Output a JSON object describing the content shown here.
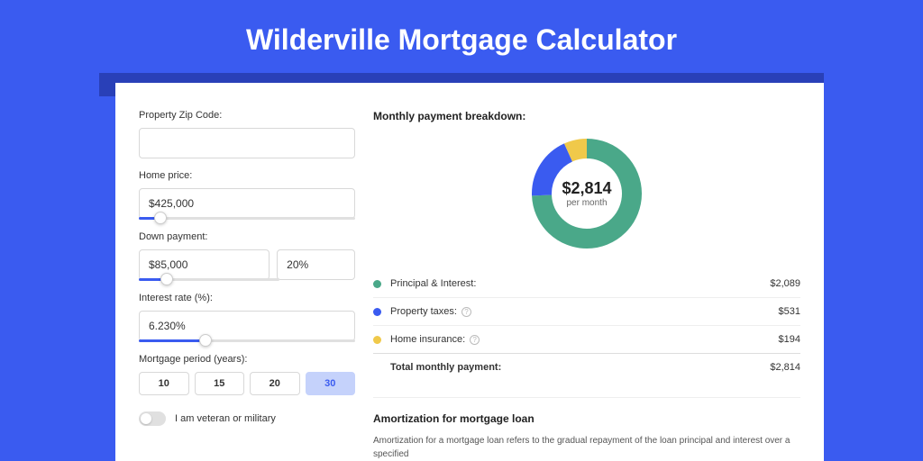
{
  "page": {
    "title": "Wilderville Mortgage Calculator",
    "background_color": "#3a5bf0",
    "band_color": "#2940b8",
    "card_bg": "#ffffff"
  },
  "form": {
    "zip": {
      "label": "Property Zip Code:",
      "value": ""
    },
    "home_price": {
      "label": "Home price:",
      "value": "$425,000",
      "slider_percent": 10
    },
    "down_payment": {
      "label": "Down payment:",
      "amount": "$85,000",
      "percent": "20%",
      "slider_percent": 20
    },
    "interest_rate": {
      "label": "Interest rate (%):",
      "value": "6.230%",
      "slider_percent": 31
    },
    "period": {
      "label": "Mortgage period (years):",
      "options": [
        "10",
        "15",
        "20",
        "30"
      ],
      "selected": "30"
    },
    "veteran": {
      "label": "I am veteran or military",
      "on": false
    }
  },
  "breakdown": {
    "title": "Monthly payment breakdown:",
    "donut": {
      "amount": "$2,814",
      "sub": "per month",
      "slices": [
        {
          "color": "#4aa889",
          "value": 2089
        },
        {
          "color": "#3a5bf0",
          "value": 531
        },
        {
          "color": "#f0c94a",
          "value": 194
        }
      ],
      "total": 2814,
      "stroke_width": 22,
      "radius": 50
    },
    "rows": [
      {
        "label": "Principal & Interest:",
        "value": "$2,089",
        "color": "#4aa889",
        "info": false
      },
      {
        "label": "Property taxes:",
        "value": "$531",
        "color": "#3a5bf0",
        "info": true
      },
      {
        "label": "Home insurance:",
        "value": "$194",
        "color": "#f0c94a",
        "info": true
      }
    ],
    "total": {
      "label": "Total monthly payment:",
      "value": "$2,814"
    }
  },
  "amortization": {
    "title": "Amortization for mortgage loan",
    "text": "Amortization for a mortgage loan refers to the gradual repayment of the loan principal and interest over a specified"
  }
}
